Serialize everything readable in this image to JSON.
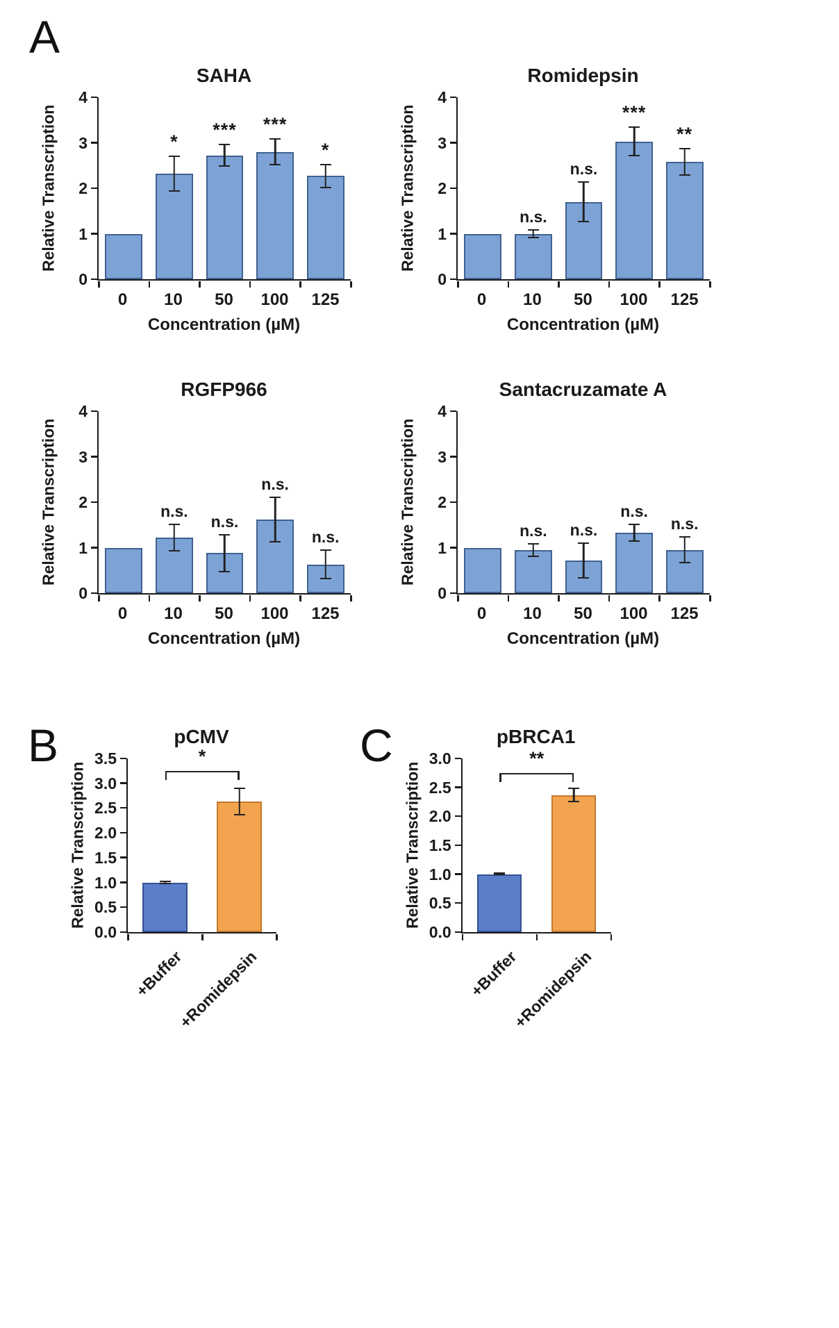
{
  "panels": {
    "a_label": "A",
    "b_label": "B",
    "c_label": "C"
  },
  "chart_data": [
    {
      "id": "saha",
      "type": "bar",
      "title": "SAHA",
      "xlabel": "Concentration (µM)",
      "ylabel": "Relative Transcription",
      "categories": [
        "0",
        "10",
        "50",
        "100",
        "125"
      ],
      "values": [
        1.0,
        2.32,
        2.72,
        2.8,
        2.27
      ],
      "errors": [
        0,
        0.4,
        0.25,
        0.3,
        0.27
      ],
      "sig": [
        "",
        "*",
        "***",
        "***",
        "*"
      ],
      "ylim": [
        0,
        4
      ],
      "ytick_labels": [
        "0",
        "1",
        "2",
        "3",
        "4"
      ],
      "bar_color": "#7da3d6",
      "bar_border": "#40618f",
      "legend": "none",
      "grid": "off"
    },
    {
      "id": "romidepsin",
      "type": "bar",
      "title": "Romidepsin",
      "xlabel": "Concentration (µM)",
      "ylabel": "Relative Transcription",
      "categories": [
        "0",
        "10",
        "50",
        "100",
        "125"
      ],
      "values": [
        1.0,
        1.0,
        1.7,
        3.03,
        2.58
      ],
      "errors": [
        0,
        0.1,
        0.45,
        0.33,
        0.3
      ],
      "sig": [
        "",
        "n.s.",
        "n.s.",
        "***",
        "**"
      ],
      "ylim": [
        0,
        4
      ],
      "ytick_labels": [
        "0",
        "1",
        "2",
        "3",
        "4"
      ],
      "bar_color": "#7da3d6",
      "bar_border": "#40618f",
      "legend": "none",
      "grid": "off"
    },
    {
      "id": "rgfp966",
      "type": "bar",
      "title": "RGFP966",
      "xlabel": "Concentration (µM)",
      "ylabel": "Relative Transcription",
      "categories": [
        "0",
        "10",
        "50",
        "100",
        "125"
      ],
      "values": [
        1.0,
        1.22,
        0.88,
        1.62,
        0.63
      ],
      "errors": [
        0,
        0.3,
        0.42,
        0.5,
        0.33
      ],
      "sig": [
        "",
        "n.s.",
        "n.s.",
        "n.s.",
        "n.s."
      ],
      "ylim": [
        0,
        4
      ],
      "ytick_labels": [
        "0",
        "1",
        "2",
        "3",
        "4"
      ],
      "bar_color": "#7da3d6",
      "bar_border": "#40618f",
      "legend": "none",
      "grid": "off"
    },
    {
      "id": "santacruzamate-a",
      "type": "bar",
      "title": "Santacruzamate A",
      "xlabel": "Concentration (µM)",
      "ylabel": "Relative Transcription",
      "categories": [
        "0",
        "10",
        "50",
        "100",
        "125"
      ],
      "values": [
        1.0,
        0.95,
        0.72,
        1.33,
        0.95
      ],
      "errors": [
        0,
        0.15,
        0.4,
        0.2,
        0.3
      ],
      "sig": [
        "",
        "n.s.",
        "n.s.",
        "n.s.",
        "n.s."
      ],
      "ylim": [
        0,
        4
      ],
      "ytick_labels": [
        "0",
        "1",
        "2",
        "3",
        "4"
      ],
      "bar_color": "#7da3d6",
      "bar_border": "#40618f",
      "legend": "none",
      "grid": "off"
    },
    {
      "id": "pcmv",
      "type": "bar",
      "title": "pCMV",
      "xlabel": "",
      "ylabel": "Relative Transcription",
      "categories": [
        "+Buffer",
        "+Romidepsin"
      ],
      "values": [
        1.0,
        2.63
      ],
      "errors": [
        0.03,
        0.28
      ],
      "sig": [
        "",
        ""
      ],
      "bracket": {
        "from": 0,
        "to": 1,
        "y": 3.22,
        "label": "*"
      },
      "ylim": [
        0,
        3.5
      ],
      "ytick_labels": [
        "0.0",
        "0.5",
        "1.0",
        "1.5",
        "2.0",
        "2.5",
        "3.0",
        "3.5"
      ],
      "bar_colors": [
        "#5b7ec9",
        "#f2a44e"
      ],
      "bar_borders": [
        "#33508f",
        "#c27b2c"
      ],
      "legend": "none",
      "grid": "off"
    },
    {
      "id": "pbrca1",
      "type": "bar",
      "title": "pBRCA1",
      "xlabel": "",
      "ylabel": "Relative Transcription",
      "categories": [
        "+Buffer",
        "+Romidepsin"
      ],
      "values": [
        1.0,
        2.37
      ],
      "errors": [
        0.02,
        0.13
      ],
      "sig": [
        "",
        ""
      ],
      "bracket": {
        "from": 0,
        "to": 1,
        "y": 2.72,
        "label": "**"
      },
      "ylim": [
        0,
        3.0
      ],
      "ytick_labels": [
        "0.0",
        "0.5",
        "1.0",
        "1.5",
        "2.0",
        "2.5",
        "3.0"
      ],
      "bar_colors": [
        "#5b7ec9",
        "#f2a44e"
      ],
      "bar_borders": [
        "#33508f",
        "#c27b2c"
      ],
      "legend": "none",
      "grid": "off"
    }
  ]
}
